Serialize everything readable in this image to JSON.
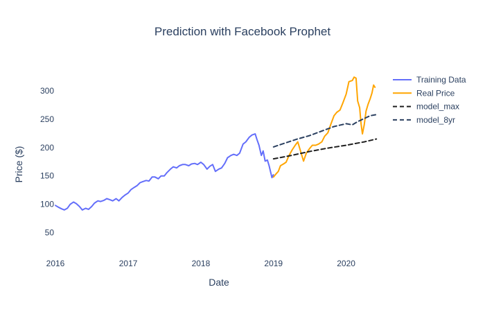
{
  "chart_data": {
    "type": "line",
    "title": "Prediction with Facebook Prophet",
    "xlabel": "Date",
    "ylabel": "Price ($)",
    "x_ticks": [
      "2016",
      "2017",
      "2018",
      "2019",
      "2020"
    ],
    "y_ticks": [
      50,
      100,
      150,
      200,
      250,
      300
    ],
    "xlim": [
      "2016-01-01",
      "2020-07-05"
    ],
    "ylim": [
      8,
      345
    ],
    "grid": false,
    "legend_position": "top-right",
    "series": [
      {
        "name": "Training Data",
        "color": "#636efa",
        "style": "solid",
        "points": [
          [
            "2016-01-01",
            98
          ],
          [
            "2016-01-15",
            95
          ],
          [
            "2016-02-01",
            92
          ],
          [
            "2016-02-15",
            90
          ],
          [
            "2016-03-01",
            93
          ],
          [
            "2016-03-15",
            100
          ],
          [
            "2016-04-01",
            104
          ],
          [
            "2016-04-15",
            101
          ],
          [
            "2016-05-01",
            96
          ],
          [
            "2016-05-15",
            90
          ],
          [
            "2016-06-01",
            93
          ],
          [
            "2016-06-15",
            91
          ],
          [
            "2016-07-01",
            96
          ],
          [
            "2016-07-15",
            102
          ],
          [
            "2016-08-01",
            106
          ],
          [
            "2016-08-15",
            105
          ],
          [
            "2016-09-01",
            107
          ],
          [
            "2016-09-15",
            110
          ],
          [
            "2016-10-01",
            108
          ],
          [
            "2016-10-15",
            106
          ],
          [
            "2016-11-01",
            110
          ],
          [
            "2016-11-15",
            106
          ],
          [
            "2016-12-01",
            112
          ],
          [
            "2016-12-15",
            116
          ],
          [
            "2017-01-01",
            120
          ],
          [
            "2017-01-15",
            126
          ],
          [
            "2017-02-01",
            130
          ],
          [
            "2017-02-15",
            133
          ],
          [
            "2017-03-01",
            138
          ],
          [
            "2017-03-15",
            140
          ],
          [
            "2017-04-01",
            142
          ],
          [
            "2017-04-15",
            141
          ],
          [
            "2017-05-01",
            148
          ],
          [
            "2017-05-15",
            148
          ],
          [
            "2017-06-01",
            145
          ],
          [
            "2017-06-15",
            150
          ],
          [
            "2017-07-01",
            150
          ],
          [
            "2017-07-15",
            156
          ],
          [
            "2017-08-01",
            162
          ],
          [
            "2017-08-15",
            166
          ],
          [
            "2017-09-01",
            164
          ],
          [
            "2017-09-15",
            168
          ],
          [
            "2017-10-01",
            170
          ],
          [
            "2017-10-15",
            170
          ],
          [
            "2017-11-01",
            168
          ],
          [
            "2017-11-15",
            171
          ],
          [
            "2017-12-01",
            172
          ],
          [
            "2017-12-15",
            170
          ],
          [
            "2018-01-01",
            174
          ],
          [
            "2018-01-15",
            170
          ],
          [
            "2018-02-01",
            162
          ],
          [
            "2018-02-15",
            167
          ],
          [
            "2018-03-01",
            170
          ],
          [
            "2018-03-15",
            158
          ],
          [
            "2018-04-01",
            162
          ],
          [
            "2018-04-15",
            164
          ],
          [
            "2018-05-01",
            172
          ],
          [
            "2018-05-15",
            182
          ],
          [
            "2018-06-01",
            186
          ],
          [
            "2018-06-15",
            188
          ],
          [
            "2018-07-01",
            186
          ],
          [
            "2018-07-15",
            190
          ],
          [
            "2018-08-01",
            206
          ],
          [
            "2018-08-15",
            210
          ],
          [
            "2018-09-01",
            218
          ],
          [
            "2018-09-15",
            222
          ],
          [
            "2018-10-01",
            224
          ],
          [
            "2018-10-10",
            214
          ],
          [
            "2018-10-20",
            204
          ],
          [
            "2018-11-01",
            186
          ],
          [
            "2018-11-10",
            194
          ],
          [
            "2018-11-20",
            176
          ],
          [
            "2018-12-01",
            178
          ],
          [
            "2018-12-10",
            168
          ],
          [
            "2018-12-24",
            147
          ],
          [
            "2018-12-31",
            152
          ]
        ]
      },
      {
        "name": "Real Price",
        "color": "#ffa500",
        "style": "solid",
        "points": [
          [
            "2019-01-01",
            148
          ],
          [
            "2019-01-10",
            152
          ],
          [
            "2019-01-25",
            158
          ],
          [
            "2019-02-05",
            168
          ],
          [
            "2019-02-20",
            171
          ],
          [
            "2019-03-05",
            174
          ],
          [
            "2019-03-20",
            186
          ],
          [
            "2019-04-05",
            196
          ],
          [
            "2019-04-20",
            204
          ],
          [
            "2019-05-03",
            210
          ],
          [
            "2019-05-15",
            196
          ],
          [
            "2019-06-01",
            176
          ],
          [
            "2019-06-15",
            190
          ],
          [
            "2019-07-01",
            198
          ],
          [
            "2019-07-15",
            204
          ],
          [
            "2019-08-01",
            204
          ],
          [
            "2019-08-15",
            206
          ],
          [
            "2019-09-01",
            210
          ],
          [
            "2019-09-15",
            220
          ],
          [
            "2019-10-01",
            226
          ],
          [
            "2019-10-15",
            240
          ],
          [
            "2019-11-01",
            256
          ],
          [
            "2019-11-15",
            262
          ],
          [
            "2019-12-01",
            266
          ],
          [
            "2019-12-15",
            278
          ],
          [
            "2020-01-01",
            294
          ],
          [
            "2020-01-15",
            316
          ],
          [
            "2020-02-01",
            318
          ],
          [
            "2020-02-10",
            324
          ],
          [
            "2020-02-20",
            322
          ],
          [
            "2020-02-28",
            282
          ],
          [
            "2020-03-09",
            270
          ],
          [
            "2020-03-16",
            242
          ],
          [
            "2020-03-23",
            224
          ],
          [
            "2020-04-01",
            240
          ],
          [
            "2020-04-10",
            264
          ],
          [
            "2020-04-20",
            276
          ],
          [
            "2020-05-01",
            286
          ],
          [
            "2020-05-10",
            296
          ],
          [
            "2020-05-18",
            310
          ],
          [
            "2020-05-25",
            306
          ]
        ]
      },
      {
        "name": "model_max",
        "color": "#1f1f1f",
        "style": "dash",
        "points": [
          [
            "2019-01-01",
            180
          ],
          [
            "2019-04-01",
            186
          ],
          [
            "2019-07-01",
            193
          ],
          [
            "2019-10-01",
            199
          ],
          [
            "2020-01-01",
            204
          ],
          [
            "2020-04-01",
            210
          ],
          [
            "2020-06-01",
            215
          ]
        ]
      },
      {
        "name": "model_8yr",
        "color": "#2a3f5f",
        "style": "dash",
        "points": [
          [
            "2019-01-01",
            201
          ],
          [
            "2019-03-01",
            208
          ],
          [
            "2019-05-01",
            215
          ],
          [
            "2019-07-01",
            221
          ],
          [
            "2019-09-01",
            229
          ],
          [
            "2019-11-01",
            237
          ],
          [
            "2020-01-01",
            242
          ],
          [
            "2020-02-01",
            240
          ],
          [
            "2020-03-01",
            246
          ],
          [
            "2020-05-01",
            256
          ],
          [
            "2020-06-01",
            258
          ]
        ]
      }
    ]
  }
}
